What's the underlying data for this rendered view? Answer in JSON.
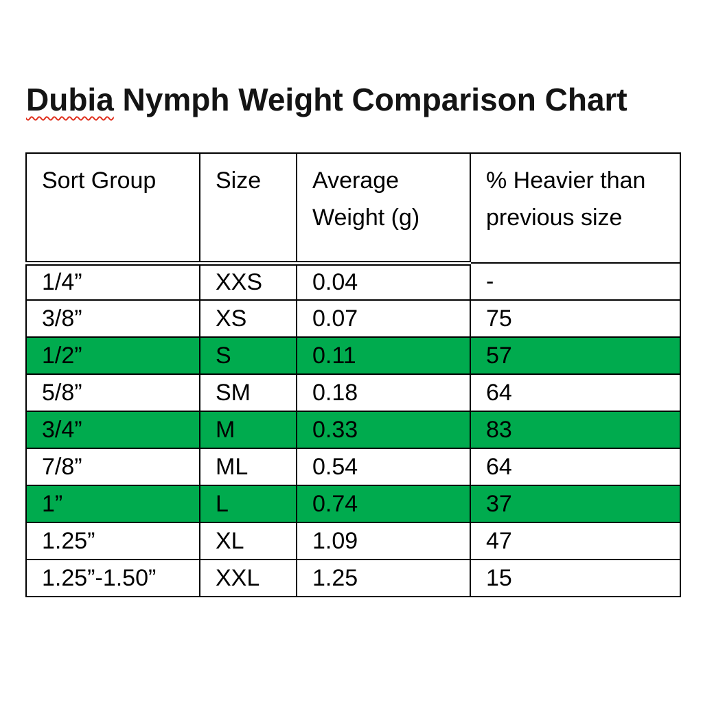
{
  "title": {
    "misspelled_word": "Dubia",
    "rest": " Nymph Weight Comparison Chart",
    "squiggle_color": "#e0301e"
  },
  "table": {
    "highlight_color": "#00AB4E",
    "columns": [
      "Sort Group",
      "Size",
      "Average Weight (g)",
      "% Heavier than previous size"
    ],
    "rows": [
      {
        "sort_group": "1/4”",
        "size": "XXS",
        "avg_weight_g": "0.04",
        "pct_heavier": "-",
        "highlighted": false
      },
      {
        "sort_group": "3/8”",
        "size": "XS",
        "avg_weight_g": "0.07",
        "pct_heavier": "75",
        "highlighted": false
      },
      {
        "sort_group": "1/2”",
        "size": "S",
        "avg_weight_g": "0.11",
        "pct_heavier": "57",
        "highlighted": true
      },
      {
        "sort_group": "5/8”",
        "size": "SM",
        "avg_weight_g": "0.18",
        "pct_heavier": "64",
        "highlighted": false
      },
      {
        "sort_group": "3/4”",
        "size": "M",
        "avg_weight_g": "0.33",
        "pct_heavier": "83",
        "highlighted": true
      },
      {
        "sort_group": "7/8”",
        "size": "ML",
        "avg_weight_g": "0.54",
        "pct_heavier": "64",
        "highlighted": false
      },
      {
        "sort_group": "1”",
        "size": "L",
        "avg_weight_g": "0.74",
        "pct_heavier": "37",
        "highlighted": true
      },
      {
        "sort_group": "1.25”",
        "size": "XL",
        "avg_weight_g": "1.09",
        "pct_heavier": "47",
        "highlighted": false
      },
      {
        "sort_group": "1.25”-1.50”",
        "size": "XXL",
        "avg_weight_g": "1.25",
        "pct_heavier": "15",
        "highlighted": false
      }
    ]
  },
  "chart_data": {
    "type": "table",
    "title": "Dubia Nymph Weight Comparison Chart",
    "columns": [
      "Sort Group",
      "Size",
      "Average Weight (g)",
      "% Heavier than previous size"
    ],
    "sort_groups": [
      "1/4”",
      "3/8”",
      "1/2”",
      "5/8”",
      "3/4”",
      "7/8”",
      "1”",
      "1.25”",
      "1.25”-1.50”"
    ],
    "sizes": [
      "XXS",
      "XS",
      "S",
      "SM",
      "M",
      "ML",
      "L",
      "XL",
      "XXL"
    ],
    "avg_weight_g": [
      0.04,
      0.07,
      0.11,
      0.18,
      0.33,
      0.54,
      0.74,
      1.09,
      1.25
    ],
    "pct_heavier_than_previous": [
      null,
      75,
      57,
      64,
      83,
      64,
      37,
      47,
      15
    ],
    "highlighted_row_indices": [
      2,
      4,
      6
    ],
    "highlight_color": "#00AB4E"
  }
}
